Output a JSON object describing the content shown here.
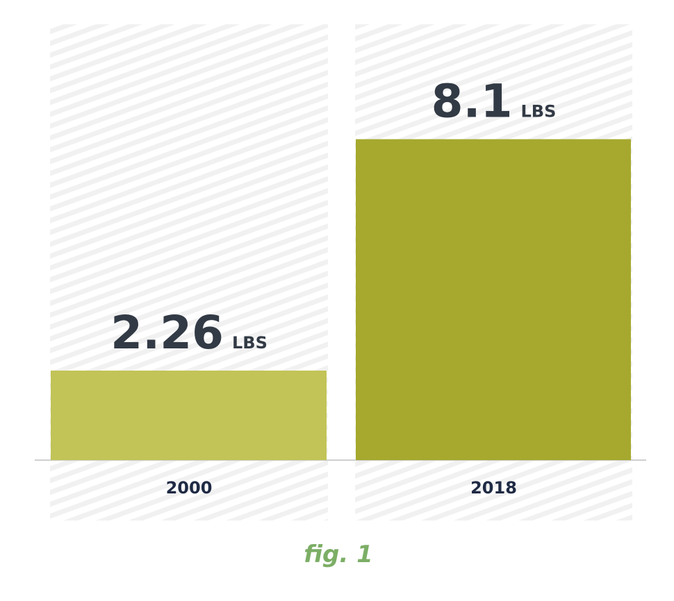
{
  "chart_data": {
    "type": "bar",
    "categories": [
      "2000",
      "2018"
    ],
    "values": [
      2.26,
      8.1
    ],
    "unit": "LBS",
    "colors": [
      "#c2c457",
      "#a6a92e"
    ],
    "ylim": [
      0,
      11
    ],
    "caption": "fig. 1"
  }
}
